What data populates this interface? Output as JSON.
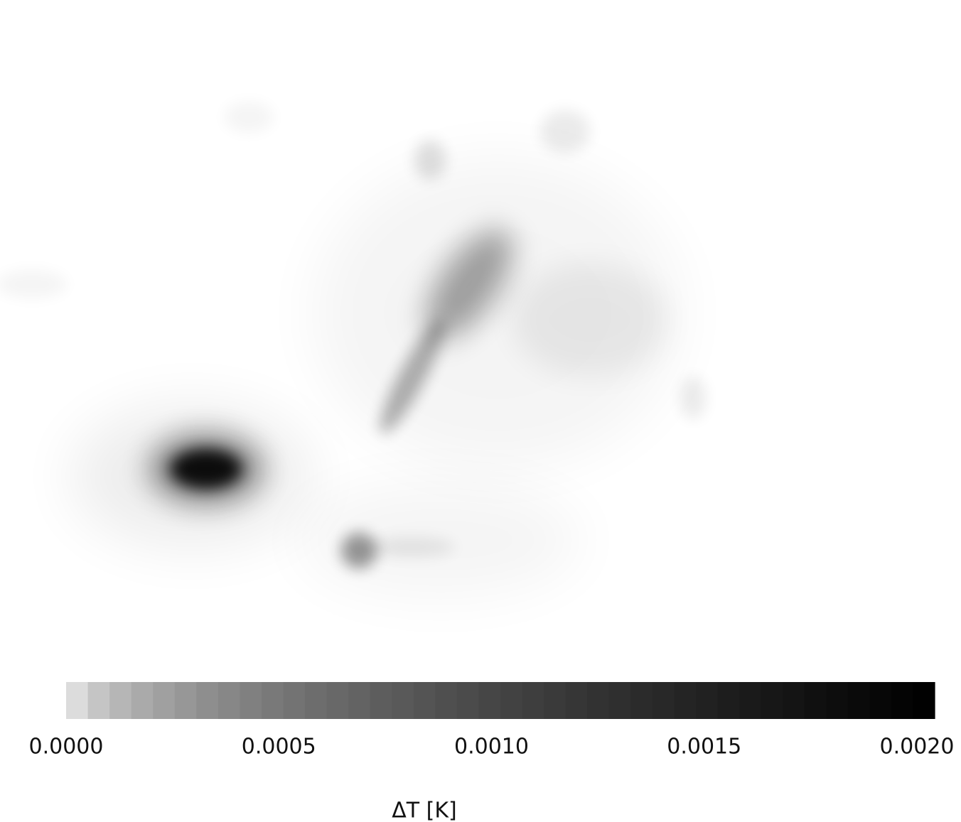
{
  "chart_data": {
    "type": "heatmap",
    "colormap": [
      "#ffffff",
      "#000000"
    ],
    "colorbar": {
      "label": "ΔT [K]",
      "clim": [
        0,
        0.002
      ],
      "ticks": [
        {
          "value": 0,
          "label": "0.0000"
        },
        {
          "value": 0.0005,
          "label": "0.0005"
        },
        {
          "value": 0.001,
          "label": "0.0010"
        },
        {
          "value": 0.0015,
          "label": "0.0015"
        },
        {
          "value": 0.002,
          "label": "0.0020"
        }
      ]
    }
  }
}
